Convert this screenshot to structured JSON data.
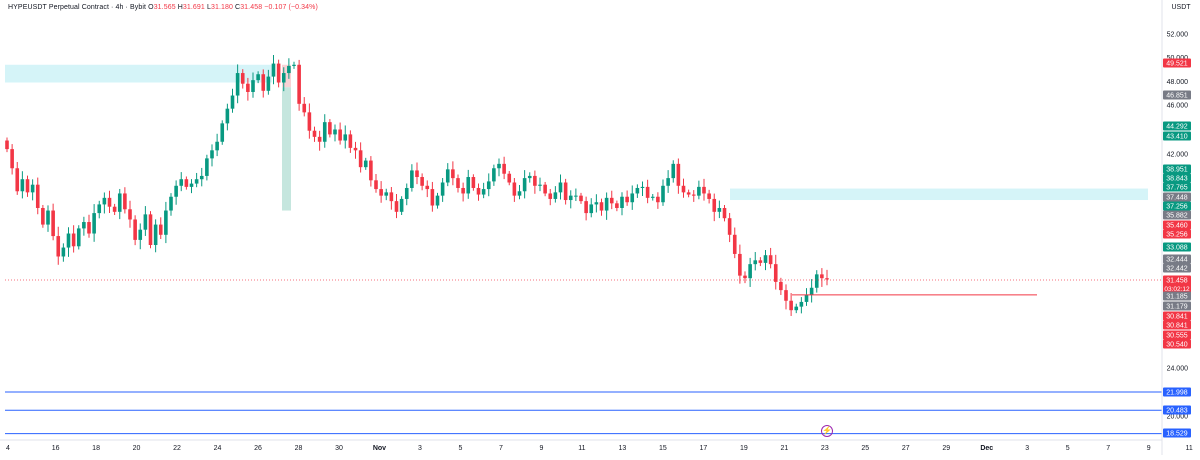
{
  "header": {
    "symbol": "HYPEUSDT Perpetual Contract · 4h · Bybit",
    "open_label": "O",
    "open": "31.565",
    "high_label": "H",
    "high": "31.691",
    "low_label": "L",
    "low": "31.180",
    "close_label": "C",
    "close": "31.458",
    "change": "−0.107 (−0.34%)",
    "currency": "USDT"
  },
  "colors": {
    "up": "#089981",
    "down": "#f23645",
    "zone": "#b2ebf2",
    "hline": "#2962ff",
    "grey_badge": "#787b86",
    "support": "#f23645"
  },
  "chart_data": {
    "type": "candlestick",
    "y_axis": {
      "ticks": [
        "52.000",
        "50.000",
        "48.000",
        "46.000",
        "42.000",
        "24.000",
        "20.000"
      ],
      "tick_values": [
        52,
        50,
        48,
        46,
        42,
        24,
        20
      ],
      "ylim": [
        17.7,
        54.2
      ],
      "scale": "piecewise",
      "breakpoints": [
        [
          52,
          34
        ],
        [
          46,
          105
        ],
        [
          42,
          154
        ],
        [
          37.256,
          206
        ],
        [
          31.458,
          280
        ],
        [
          24,
          368
        ],
        [
          20,
          416
        ]
      ]
    },
    "x_axis": {
      "ticks": [
        "4",
        "16",
        "18",
        "20",
        "22",
        "24",
        "26",
        "28",
        "30",
        "Nov",
        "3",
        "5",
        "7",
        "9",
        "11",
        "13",
        "15",
        "17",
        "19",
        "21",
        "23",
        "25",
        "27",
        "29",
        "Dec",
        "3",
        "5",
        "7",
        "9",
        "11"
      ]
    },
    "candles_summary": "HYPEUSDT 4h, approx. Oct 14 to Nov 24; values in USDT",
    "closes": [
      42.4,
      40.7,
      38.6,
      39.7,
      38.5,
      39.2,
      37.1,
      35.8,
      36.9,
      34.9,
      33.3,
      34.0,
      35.1,
      34.1,
      35.5,
      36.0,
      35.1,
      36.7,
      37.4,
      38.0,
      37.2,
      36.8,
      38.4,
      37.0,
      36.2,
      34.6,
      35.4,
      36.6,
      34.2,
      35.8,
      35.0,
      36.9,
      38.1,
      39.1,
      39.7,
      39.0,
      39.3,
      39.7,
      40.0,
      41.6,
      42.3,
      43.0,
      44.5,
      45.7,
      46.8,
      48.7,
      47.8,
      47.1,
      48.1,
      48.6,
      47.2,
      48.4,
      49.5,
      47.9,
      48.7,
      49.3,
      49.4,
      46.1,
      45.4,
      43.9,
      43.4,
      43.0,
      44.6,
      43.6,
      44.0,
      43.1,
      43.6,
      42.5,
      42.3,
      40.8,
      41.4,
      39.6,
      38.8,
      38.2,
      38.5,
      37.7,
      36.8,
      37.9,
      38.9,
      40.5,
      39.9,
      39.1,
      38.8,
      37.3,
      38.2,
      39.4,
      40.6,
      39.8,
      38.9,
      38.4,
      39.9,
      38.9,
      38.3,
      38.8,
      39.5,
      40.7,
      41.1,
      40.2,
      39.4,
      38.2,
      38.6,
      39.8,
      40.0,
      39.1,
      39.2,
      38.4,
      37.9,
      38.5,
      39.4,
      37.8,
      38.2,
      38.2,
      37.7,
      36.7,
      37.4,
      37.6,
      36.9,
      38.0,
      37.5,
      37.1,
      38.1,
      37.6,
      38.4,
      38.9,
      39.0,
      38.0,
      38.1,
      37.6,
      39.1,
      39.8,
      41.1,
      39.1,
      38.5,
      38.3,
      38.2,
      39.0,
      38.4,
      37.9,
      36.8,
      37.1,
      36.3,
      35.0,
      33.5,
      31.8,
      31.6,
      32.7,
      33.0,
      32.8,
      33.4,
      32.7,
      31.3,
      30.6,
      29.7,
      28.9,
      29.2,
      29.6,
      30.2,
      30.8,
      31.9,
      31.6,
      31.5
    ],
    "price_levels": [
      {
        "label": "49.521",
        "kind": "down"
      },
      {
        "label": "46.851",
        "kind": "grey"
      },
      {
        "label": "44.292",
        "kind": "up"
      },
      {
        "label": "43.410",
        "kind": "up"
      },
      {
        "label": "38.951",
        "kind": "up"
      },
      {
        "label": "38.843",
        "kind": "up"
      },
      {
        "label": "37.765",
        "kind": "up"
      },
      {
        "label": "37.448",
        "kind": "grey"
      },
      {
        "label": "37.256",
        "kind": "up"
      },
      {
        "label": "35.882",
        "kind": "grey"
      },
      {
        "label": "35.460",
        "kind": "down"
      },
      {
        "label": "35.256",
        "kind": "down"
      },
      {
        "label": "33.088",
        "kind": "up"
      },
      {
        "label": "32.444",
        "kind": "grey"
      },
      {
        "label": "32.442",
        "kind": "grey"
      },
      {
        "label": "31.458",
        "kind": "down",
        "sub": "03:02:12"
      },
      {
        "label": "31.185",
        "kind": "grey"
      },
      {
        "label": "31.179",
        "kind": "grey"
      },
      {
        "label": "30.841",
        "kind": "down"
      },
      {
        "label": "30.841",
        "kind": "down"
      },
      {
        "label": "30.555",
        "kind": "down"
      },
      {
        "label": "30.540",
        "kind": "down"
      },
      {
        "label": "21.998",
        "kind": "blue"
      },
      {
        "label": "20.483",
        "kind": "blue"
      },
      {
        "label": "18.529",
        "kind": "blue"
      }
    ],
    "horizontal_lines": [
      21.998,
      20.483,
      18.529
    ],
    "zones": [
      {
        "from": 47.9,
        "to": 49.4,
        "x_start": "Oct 14",
        "x_end": "Oct 27"
      },
      {
        "from": 37.8,
        "to": 38.85,
        "x_start": "Nov 19",
        "x_end": "Dec 10"
      }
    ],
    "support_line": 30.2
  }
}
